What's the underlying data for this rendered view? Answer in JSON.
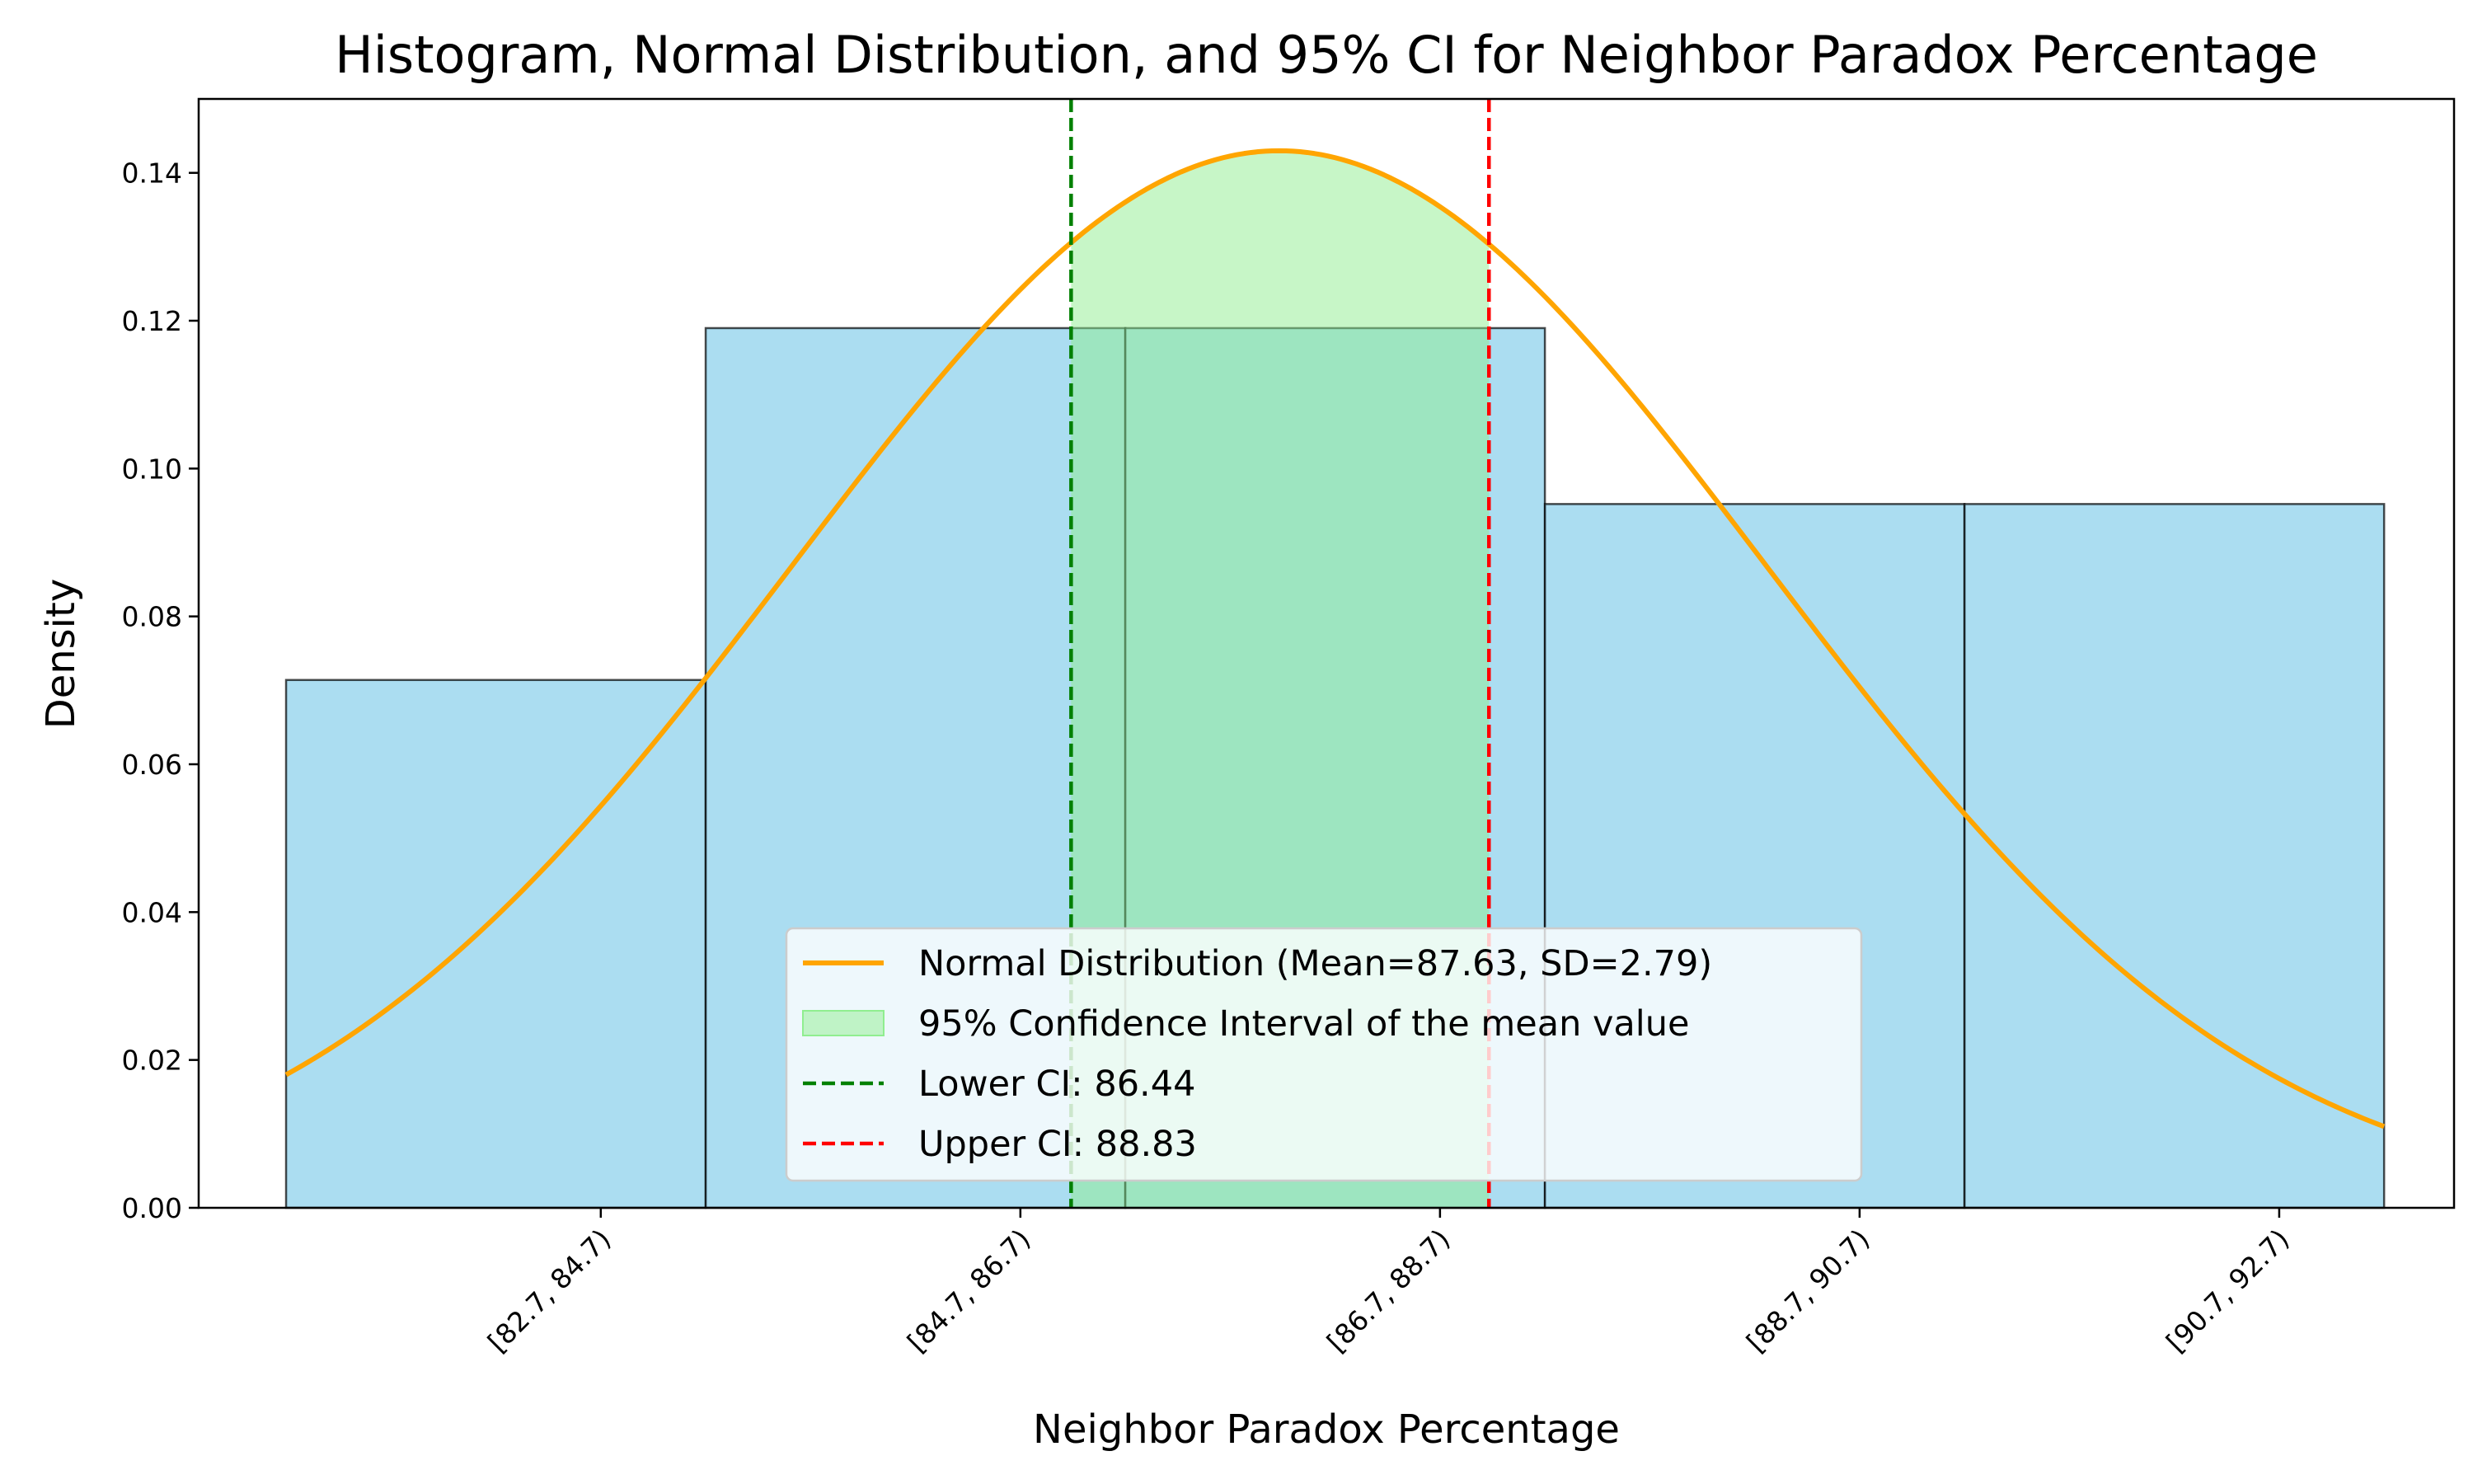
{
  "chart_data": {
    "type": "bar",
    "title": "Histogram, Normal Distribution, and 95% CI for Neighbor Paradox Percentage",
    "xlabel": "Neighbor Paradox Percentage",
    "ylabel": "Density",
    "xlim": [
      81.45,
      94.35
    ],
    "ylim": [
      0,
      0.15
    ],
    "bins": [
      {
        "label": "[82.7, 84.7)",
        "start": 81.95,
        "end": 84.35,
        "density": 0.0714
      },
      {
        "label": "[84.7, 86.7)",
        "start": 84.35,
        "end": 86.75,
        "density": 0.119
      },
      {
        "label": "[86.7, 88.7)",
        "start": 86.75,
        "end": 89.15,
        "density": 0.119
      },
      {
        "label": "[88.7, 90.7)",
        "start": 89.15,
        "end": 91.55,
        "density": 0.0952
      },
      {
        "label": "[90.7, 92.7)",
        "start": 91.55,
        "end": 93.95,
        "density": 0.0952
      }
    ],
    "x_ticks": [
      {
        "value": 83.75,
        "label": "[82.7, 84.7)"
      },
      {
        "value": 86.15,
        "label": "[84.7, 86.7)"
      },
      {
        "value": 88.55,
        "label": "[86.7, 88.7)"
      },
      {
        "value": 90.95,
        "label": "[88.7, 90.7)"
      },
      {
        "value": 93.35,
        "label": "[90.7, 92.7)"
      }
    ],
    "y_ticks": [
      "0.00",
      "0.02",
      "0.04",
      "0.06",
      "0.08",
      "0.10",
      "0.12",
      "0.14"
    ],
    "normal": {
      "mean": 87.63,
      "sd": 2.79,
      "x_range": [
        81.95,
        93.95
      ],
      "color": "#ffa500"
    },
    "ci": {
      "lower": 86.44,
      "upper": 88.83,
      "fill_color": "#90ee90",
      "lower_color": "#008000",
      "upper_color": "#ff0000"
    },
    "colors": {
      "bar": "#87ceeb",
      "bar_edge": "#000000"
    },
    "legend": {
      "placement": "lower center",
      "entries": [
        {
          "label": "Normal Distribution (Mean=87.63, SD=2.79)",
          "kind": "line",
          "color": "#ffa500"
        },
        {
          "label": "95% Confidence Interval of the mean value",
          "kind": "patch",
          "color": "#90ee90"
        },
        {
          "label": "Lower CI: 86.44",
          "kind": "dashed",
          "color": "#008000"
        },
        {
          "label": "Upper CI: 88.83",
          "kind": "dashed",
          "color": "#ff0000"
        }
      ]
    }
  }
}
